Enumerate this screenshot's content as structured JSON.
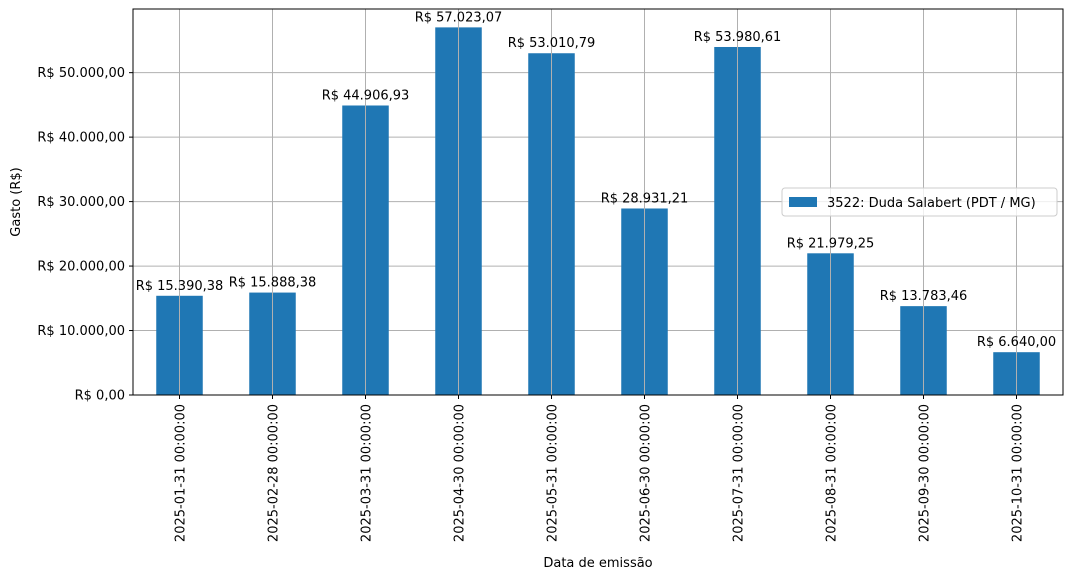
{
  "chart_data": {
    "type": "bar",
    "title": "",
    "xlabel": "Data de emissão",
    "ylabel": "Gasto (R$)",
    "categories": [
      "2025-01-31 00:00:00",
      "2025-02-28 00:00:00",
      "2025-03-31 00:00:00",
      "2025-04-30 00:00:00",
      "2025-05-31 00:00:00",
      "2025-06-30 00:00:00",
      "2025-07-31 00:00:00",
      "2025-08-31 00:00:00",
      "2025-09-30 00:00:00",
      "2025-10-31 00:00:00"
    ],
    "series": [
      {
        "name": "3522: Duda Salabert (PDT / MG)",
        "color": "#1f77b4",
        "values": [
          15390.38,
          15888.38,
          44906.93,
          57023.07,
          53010.79,
          28931.21,
          53980.61,
          21979.25,
          13783.46,
          6640.0
        ]
      }
    ],
    "data_labels": [
      "R$ 15.390,38",
      "R$ 15.888,38",
      "R$ 44.906,93",
      "R$ 57.023,07",
      "R$ 53.010,79",
      "R$ 28.931,21",
      "R$ 53.980,61",
      "R$ 21.979,25",
      "R$ 13.783,46",
      "R$ 6.640,00"
    ],
    "yticks": [
      0,
      10000,
      20000,
      30000,
      40000,
      50000
    ],
    "ytick_labels": [
      "R$ 0,00",
      "R$ 10.000,00",
      "R$ 20.000,00",
      "R$ 30.000,00",
      "R$ 40.000,00",
      "R$ 50.000,00"
    ],
    "ylim": [
      0,
      59874.22
    ],
    "grid": true,
    "legend_position": "center-right"
  }
}
